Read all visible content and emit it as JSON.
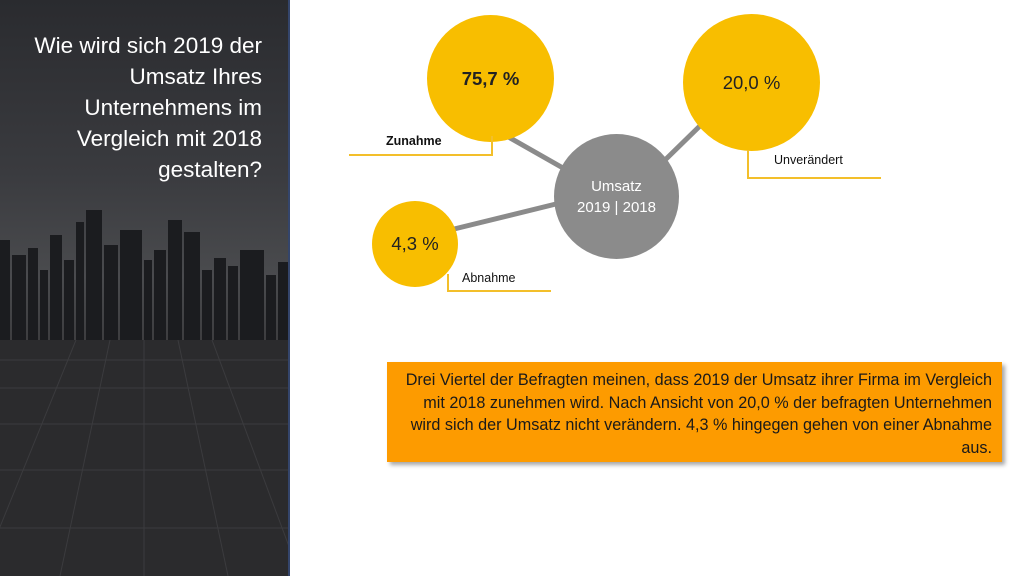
{
  "sidebar": {
    "headline": "Wie wird sich 2019 der Umsatz Ihres Unternehmens im Vergleich mit 2018 gestalten?"
  },
  "center": {
    "line1": "Umsatz",
    "line2": "2019 | 2018"
  },
  "bubbles": [
    {
      "value": "75,7 %",
      "label": "Zunahme"
    },
    {
      "value": "20,0 %",
      "label": "Unverändert"
    },
    {
      "value": "4,3 %",
      "label": "Abnahme"
    }
  ],
  "info_text": "Drei Viertel der Befragten meinen, dass 2019 der Umsatz ihrer Firma im Vergleich mit 2018 zunehmen wird. Nach Ansicht von 20,0 % der befragten Unternehmen wird sich der Umsatz nicht verändern. 4,3 % hingegen gehen von einer Abnahme aus.",
  "colors": {
    "yellow": "#f8be00",
    "gray": "#8b8b8b",
    "orange": "#fd9b00",
    "underline": "#f3bf2a",
    "panel_edge": "#34456b"
  }
}
